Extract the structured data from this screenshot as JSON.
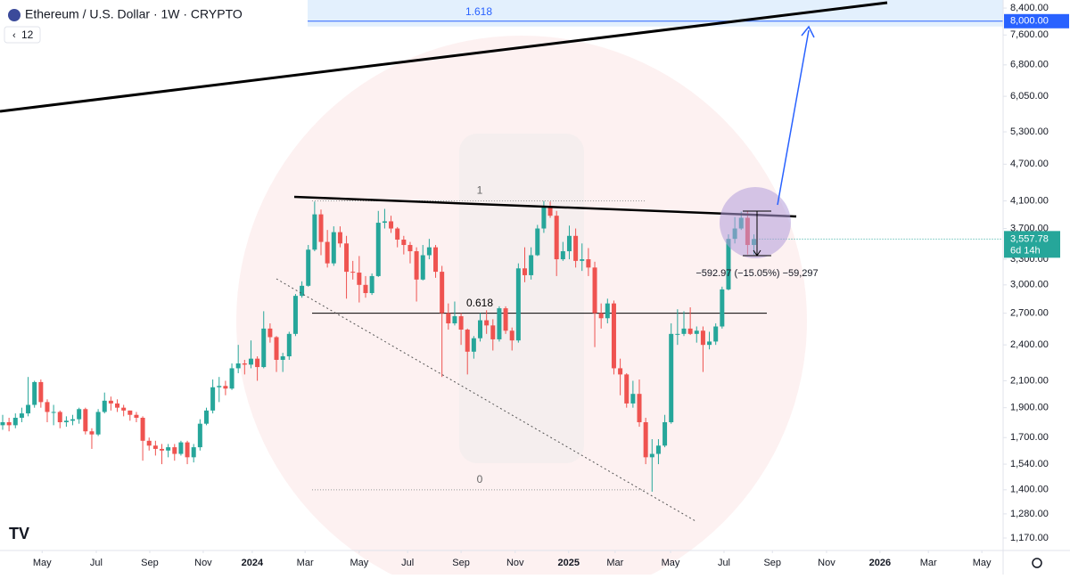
{
  "chart_data": {
    "type": "candlestick",
    "title": "Ethereum / U.S. Dollar · 1W · CRYPTO",
    "indicator_count": "12",
    "log": true,
    "up_color": "#26a69a",
    "down_color": "#ef5350",
    "ylim": [
      1117,
      8656
    ],
    "xlim": [
      -0.42,
      157.14
    ],
    "yticks": [
      {
        "value": 8400,
        "label": "8,400.00"
      },
      {
        "value": 7600,
        "label": "7,600.00"
      },
      {
        "value": 6800,
        "label": "6,800.00"
      },
      {
        "value": 6050,
        "label": "6,050.00"
      },
      {
        "value": 5300,
        "label": "5,300.00"
      },
      {
        "value": 4700,
        "label": "4,700.00"
      },
      {
        "value": 4100,
        "label": "4,100.00"
      },
      {
        "value": 3700,
        "label": "3,700.00"
      },
      {
        "value": 3300,
        "label": "3,300.00"
      },
      {
        "value": 3000,
        "label": "3,000.00"
      },
      {
        "value": 2700,
        "label": "2,700.00"
      },
      {
        "value": 2400,
        "label": "2,400.00"
      },
      {
        "value": 2100,
        "label": "2,100.00"
      },
      {
        "value": 1900,
        "label": "1,900.00"
      },
      {
        "value": 1700,
        "label": "1,700.00"
      },
      {
        "value": 1540,
        "label": "1,540.00"
      },
      {
        "value": 1400,
        "label": "1,400.00"
      },
      {
        "value": 1280,
        "label": "1,280.00"
      },
      {
        "value": 1170,
        "label": "1,170.00"
      }
    ],
    "xticks": [
      {
        "value": 6.2,
        "label": "May"
      },
      {
        "value": 14.7,
        "label": "Jul"
      },
      {
        "value": 23.1,
        "label": "Sep"
      },
      {
        "value": 31.5,
        "label": "Nov"
      },
      {
        "value": 39.2,
        "label": "2024"
      },
      {
        "value": 47.5,
        "label": "Mar"
      },
      {
        "value": 56.0,
        "label": "May"
      },
      {
        "value": 63.6,
        "label": "Jul"
      },
      {
        "value": 72.0,
        "label": "Sep"
      },
      {
        "value": 80.5,
        "label": "Nov"
      },
      {
        "value": 88.9,
        "label": "2025"
      },
      {
        "value": 96.2,
        "label": "Mar"
      },
      {
        "value": 104.9,
        "label": "May"
      },
      {
        "value": 113.3,
        "label": "Jul"
      },
      {
        "value": 120.9,
        "label": "Sep"
      },
      {
        "value": 129.4,
        "label": "Nov"
      },
      {
        "value": 137.8,
        "label": "2026"
      },
      {
        "value": 145.4,
        "label": "Mar"
      },
      {
        "value": 153.8,
        "label": "May"
      }
    ],
    "highlight_tag": {
      "value": 8000,
      "label": "8,000.00"
    },
    "last_price": 3557.78,
    "last_price_label": "3,557.78",
    "countdown": "6d 14h",
    "fib_levels": [
      {
        "label": "1.618",
        "value": 8000
      },
      {
        "label": "1",
        "value": 4100
      },
      {
        "label": "0.618",
        "value": 2700
      },
      {
        "label": "0",
        "value": 1400
      }
    ],
    "measure_label": "−592.97 (−15.05%) −59,297",
    "candles": [
      [
        1780,
        1850,
        1750,
        1800
      ],
      [
        1800,
        1830,
        1740,
        1780
      ],
      [
        1780,
        1860,
        1760,
        1830
      ],
      [
        1830,
        1900,
        1800,
        1860
      ],
      [
        1860,
        2130,
        1840,
        1920
      ],
      [
        1920,
        2100,
        1900,
        2090
      ],
      [
        2090,
        2110,
        1900,
        1940
      ],
      [
        1940,
        1960,
        1800,
        1870
      ],
      [
        1870,
        1920,
        1780,
        1870
      ],
      [
        1870,
        1880,
        1760,
        1800
      ],
      [
        1800,
        1840,
        1770,
        1810
      ],
      [
        1810,
        1850,
        1780,
        1820
      ],
      [
        1820,
        1900,
        1790,
        1890
      ],
      [
        1890,
        1900,
        1720,
        1740
      ],
      [
        1740,
        1760,
        1630,
        1720
      ],
      [
        1720,
        1890,
        1710,
        1870
      ],
      [
        1870,
        2010,
        1860,
        1950
      ],
      [
        1950,
        1980,
        1880,
        1930
      ],
      [
        1930,
        1960,
        1870,
        1900
      ],
      [
        1900,
        1920,
        1840,
        1880
      ],
      [
        1880,
        1880,
        1810,
        1850
      ],
      [
        1850,
        1870,
        1800,
        1830
      ],
      [
        1830,
        1840,
        1560,
        1680
      ],
      [
        1680,
        1700,
        1620,
        1650
      ],
      [
        1650,
        1680,
        1590,
        1630
      ],
      [
        1630,
        1660,
        1540,
        1620
      ],
      [
        1620,
        1660,
        1580,
        1640
      ],
      [
        1640,
        1660,
        1560,
        1600
      ],
      [
        1600,
        1680,
        1590,
        1670
      ],
      [
        1670,
        1680,
        1540,
        1580
      ],
      [
        1580,
        1660,
        1550,
        1640
      ],
      [
        1640,
        1820,
        1620,
        1790
      ],
      [
        1790,
        1900,
        1780,
        1880
      ],
      [
        1880,
        2110,
        1860,
        2050
      ],
      [
        2050,
        2130,
        1940,
        2060
      ],
      [
        2060,
        2100,
        1990,
        2040
      ],
      [
        2040,
        2240,
        2030,
        2200
      ],
      [
        2200,
        2400,
        2160,
        2240
      ],
      [
        2240,
        2270,
        2150,
        2230
      ],
      [
        2230,
        2440,
        2200,
        2280
      ],
      [
        2280,
        2300,
        2100,
        2210
      ],
      [
        2210,
        2720,
        2200,
        2550
      ],
      [
        2550,
        2600,
        2420,
        2470
      ],
      [
        2470,
        2480,
        2170,
        2270
      ],
      [
        2270,
        2330,
        2170,
        2300
      ],
      [
        2300,
        2520,
        2270,
        2500
      ],
      [
        2500,
        2900,
        2480,
        2880
      ],
      [
        2880,
        3040,
        2860,
        2990
      ],
      [
        2990,
        3480,
        2980,
        3420
      ],
      [
        3420,
        4090,
        3400,
        3900
      ],
      [
        3900,
        3970,
        3350,
        3520
      ],
      [
        3520,
        3680,
        3200,
        3250
      ],
      [
        3250,
        3730,
        3220,
        3650
      ],
      [
        3650,
        3730,
        3450,
        3500
      ],
      [
        3500,
        3600,
        2850,
        3150
      ],
      [
        3150,
        3280,
        3060,
        3140
      ],
      [
        3140,
        3340,
        2810,
        3000
      ],
      [
        3000,
        3100,
        2860,
        2910
      ],
      [
        2910,
        3130,
        2890,
        3100
      ],
      [
        3100,
        3950,
        3090,
        3780
      ],
      [
        3780,
        3980,
        3700,
        3800
      ],
      [
        3800,
        3880,
        3640,
        3700
      ],
      [
        3700,
        3720,
        3450,
        3550
      ],
      [
        3550,
        3600,
        3360,
        3480
      ],
      [
        3480,
        3520,
        3250,
        3400
      ],
      [
        3400,
        3450,
        2820,
        3060
      ],
      [
        3060,
        3480,
        3050,
        3350
      ],
      [
        3350,
        3560,
        3300,
        3450
      ],
      [
        3450,
        3480,
        3080,
        3150
      ],
      [
        3150,
        3220,
        2130,
        2700
      ],
      [
        2700,
        2800,
        2540,
        2600
      ],
      [
        2600,
        2820,
        2580,
        2670
      ],
      [
        2670,
        2700,
        2400,
        2540
      ],
      [
        2540,
        2550,
        2150,
        2340
      ],
      [
        2340,
        2480,
        2280,
        2460
      ],
      [
        2460,
        2700,
        2430,
        2630
      ],
      [
        2630,
        2730,
        2500,
        2580
      ],
      [
        2580,
        2640,
        2350,
        2450
      ],
      [
        2450,
        2770,
        2430,
        2750
      ],
      [
        2750,
        2770,
        2500,
        2530
      ],
      [
        2530,
        2560,
        2350,
        2440
      ],
      [
        2440,
        3250,
        2420,
        3190
      ],
      [
        3190,
        3450,
        3030,
        3110
      ],
      [
        3110,
        3450,
        3060,
        3350
      ],
      [
        3350,
        3750,
        3340,
        3700
      ],
      [
        3700,
        4100,
        3640,
        4000
      ],
      [
        4000,
        4090,
        3850,
        3880
      ],
      [
        3880,
        3950,
        3100,
        3300
      ],
      [
        3300,
        3520,
        3280,
        3400
      ],
      [
        3400,
        3740,
        3300,
        3600
      ],
      [
        3600,
        3700,
        3200,
        3280
      ],
      [
        3280,
        3500,
        3160,
        3300
      ],
      [
        3300,
        3440,
        3100,
        3200
      ],
      [
        3200,
        3270,
        2380,
        2700
      ],
      [
        2700,
        2800,
        2550,
        2650
      ],
      [
        2650,
        2850,
        2600,
        2800
      ],
      [
        2800,
        2830,
        2150,
        2200
      ],
      [
        2200,
        2280,
        1990,
        2150
      ],
      [
        2150,
        2160,
        1900,
        1930
      ],
      [
        1930,
        2100,
        1900,
        2000
      ],
      [
        2000,
        2110,
        1770,
        1800
      ],
      [
        1800,
        1830,
        1540,
        1580
      ],
      [
        1580,
        1690,
        1390,
        1600
      ],
      [
        1600,
        1690,
        1540,
        1650
      ],
      [
        1650,
        1850,
        1640,
        1800
      ],
      [
        1800,
        2600,
        1790,
        2500
      ],
      [
        2500,
        2740,
        2400,
        2500
      ],
      [
        2500,
        2720,
        2480,
        2550
      ],
      [
        2550,
        2760,
        2490,
        2500
      ],
      [
        2500,
        2570,
        2420,
        2530
      ],
      [
        2530,
        2570,
        2170,
        2400
      ],
      [
        2400,
        2520,
        2360,
        2430
      ],
      [
        2430,
        2600,
        2400,
        2570
      ],
      [
        2570,
        2980,
        2550,
        2950
      ],
      [
        2950,
        3620,
        2940,
        3560
      ],
      [
        3560,
        3860,
        3500,
        3700
      ],
      [
        3700,
        3940,
        3680,
        3850
      ],
      [
        3850,
        3940,
        3360,
        3480
      ],
      [
        3480,
        3620,
        3360,
        3557.78
      ]
    ]
  }
}
